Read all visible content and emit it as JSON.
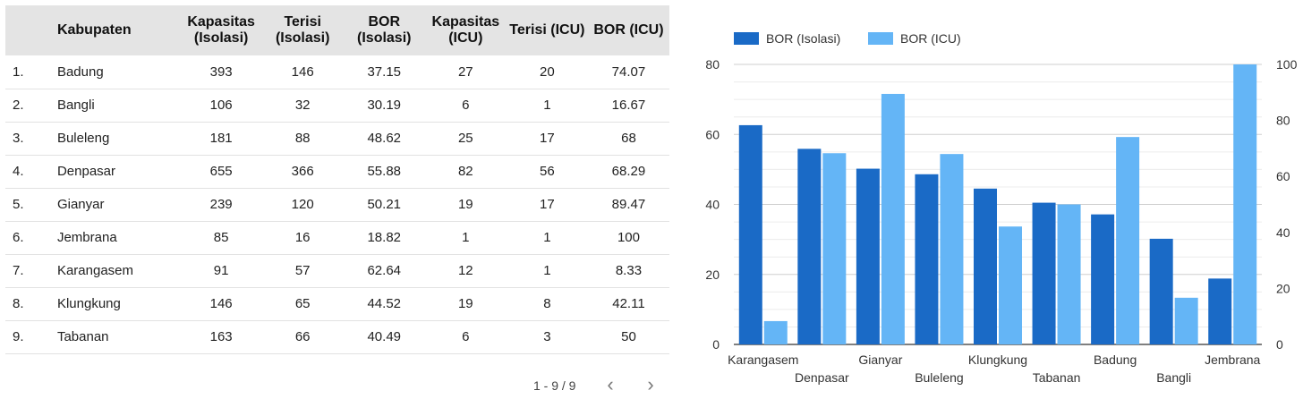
{
  "table": {
    "columns": {
      "name": "Kabupaten",
      "kap_iso": "Kapasitas (Isolasi)",
      "ter_iso": "Terisi (Isolasi)",
      "bor_iso": "BOR (Isolasi)",
      "kap_icu": "Kapasitas (ICU)",
      "ter_icu": "Terisi (ICU)",
      "bor_icu": "BOR (ICU)"
    },
    "rows": [
      {
        "no": "1.",
        "name": "Badung",
        "kap_iso": "393",
        "ter_iso": "146",
        "bor_iso": "37.15",
        "kap_icu": "27",
        "ter_icu": "20",
        "bor_icu": "74.07"
      },
      {
        "no": "2.",
        "name": "Bangli",
        "kap_iso": "106",
        "ter_iso": "32",
        "bor_iso": "30.19",
        "kap_icu": "6",
        "ter_icu": "1",
        "bor_icu": "16.67"
      },
      {
        "no": "3.",
        "name": "Buleleng",
        "kap_iso": "181",
        "ter_iso": "88",
        "bor_iso": "48.62",
        "kap_icu": "25",
        "ter_icu": "17",
        "bor_icu": "68"
      },
      {
        "no": "4.",
        "name": "Denpasar",
        "kap_iso": "655",
        "ter_iso": "366",
        "bor_iso": "55.88",
        "kap_icu": "82",
        "ter_icu": "56",
        "bor_icu": "68.29"
      },
      {
        "no": "5.",
        "name": "Gianyar",
        "kap_iso": "239",
        "ter_iso": "120",
        "bor_iso": "50.21",
        "kap_icu": "19",
        "ter_icu": "17",
        "bor_icu": "89.47"
      },
      {
        "no": "6.",
        "name": "Jembrana",
        "kap_iso": "85",
        "ter_iso": "16",
        "bor_iso": "18.82",
        "kap_icu": "1",
        "ter_icu": "1",
        "bor_icu": "100"
      },
      {
        "no": "7.",
        "name": "Karangasem",
        "kap_iso": "91",
        "ter_iso": "57",
        "bor_iso": "62.64",
        "kap_icu": "12",
        "ter_icu": "1",
        "bor_icu": "8.33"
      },
      {
        "no": "8.",
        "name": "Klungkung",
        "kap_iso": "146",
        "ter_iso": "65",
        "bor_iso": "44.52",
        "kap_icu": "19",
        "ter_icu": "8",
        "bor_icu": "42.11"
      },
      {
        "no": "9.",
        "name": "Tabanan",
        "kap_iso": "163",
        "ter_iso": "66",
        "bor_iso": "40.49",
        "kap_icu": "6",
        "ter_icu": "3",
        "bor_icu": "50"
      }
    ],
    "pagination": "1 - 9 / 9",
    "prev_icon": "chevron-left-icon",
    "next_icon": "chevron-right-icon"
  },
  "chart_data": {
    "type": "bar",
    "categories": [
      "Karangasem",
      "Denpasar",
      "Gianyar",
      "Buleleng",
      "Klungkung",
      "Tabanan",
      "Badung",
      "Bangli",
      "Jembrana"
    ],
    "series": [
      {
        "name": "BOR (Isolasi)",
        "values": [
          62.64,
          55.88,
          50.21,
          48.62,
          44.52,
          40.49,
          37.15,
          30.19,
          18.82
        ],
        "axis": "left",
        "color": "#1a6ac6"
      },
      {
        "name": "BOR (ICU)",
        "values": [
          8.33,
          68.29,
          89.47,
          68,
          42.11,
          50,
          74.07,
          16.67,
          100
        ],
        "axis": "right",
        "color": "#64b5f6"
      }
    ],
    "y_left": {
      "min": 0,
      "max": 80,
      "ticks": [
        0,
        20,
        40,
        60,
        80
      ]
    },
    "y_right": {
      "min": 0,
      "max": 100,
      "ticks": [
        0,
        20,
        40,
        60,
        80,
        100
      ]
    },
    "legend_position": "top-left",
    "grid": true
  }
}
